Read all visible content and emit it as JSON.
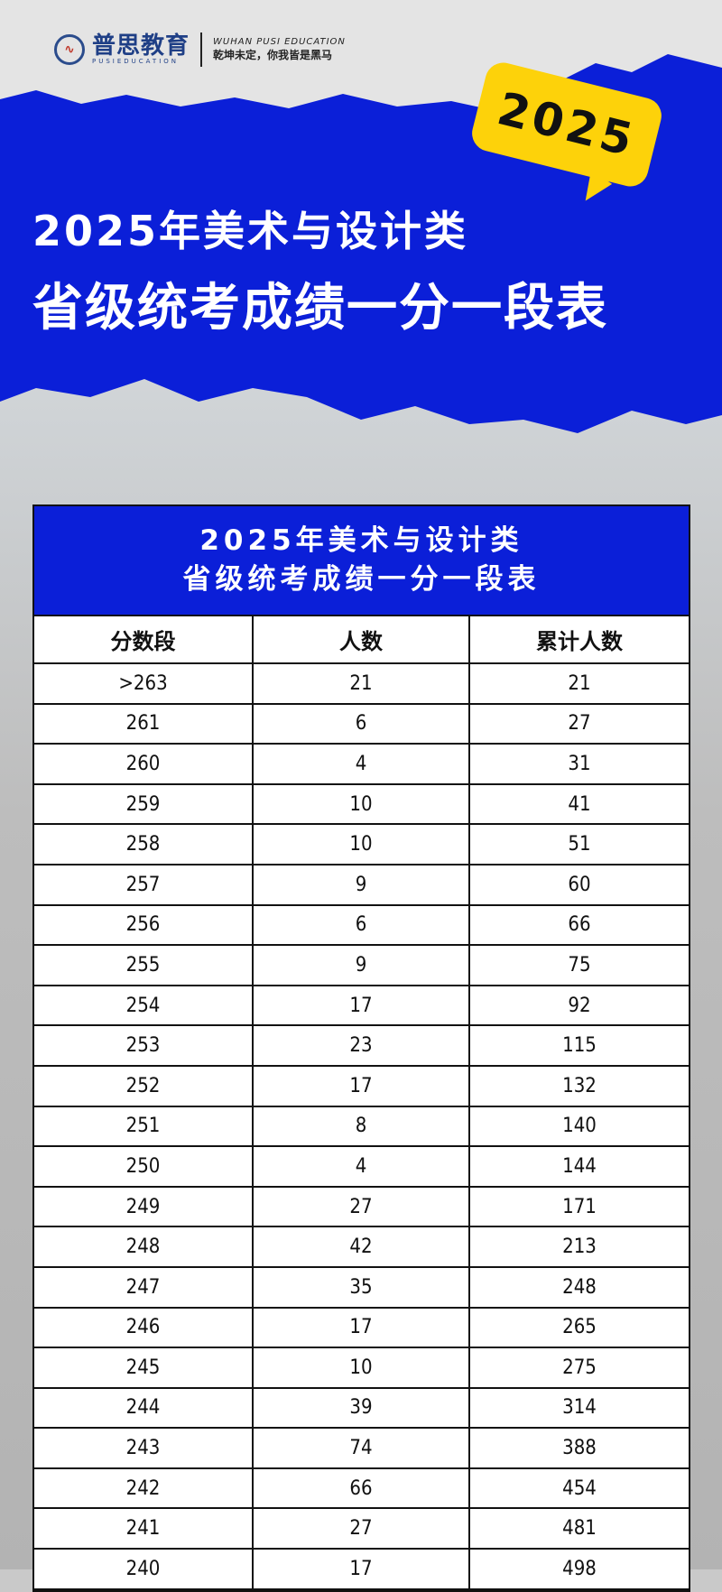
{
  "brand": {
    "name": "普思教育",
    "sub": "PUSIEDUCATION",
    "en": "WUHAN PUSI EDUCATION",
    "slogan": "乾坤未定，你我皆是黑马"
  },
  "badge": "2025",
  "title_line1": "2025年美术与设计类",
  "title_line2": "省级统考成绩一分一段表",
  "colors": {
    "blue": "#0b1fd8",
    "yellow": "#fdd20a"
  },
  "table": {
    "title_line1": "2025年美术与设计类",
    "title_line2": "省级统考成绩一分一段表",
    "headers": [
      "分数段",
      "人数",
      "累计人数"
    ],
    "rows": [
      [
        ">263",
        "21",
        "21"
      ],
      [
        "261",
        "6",
        "27"
      ],
      [
        "260",
        "4",
        "31"
      ],
      [
        "259",
        "10",
        "41"
      ],
      [
        "258",
        "10",
        "51"
      ],
      [
        "257",
        "9",
        "60"
      ],
      [
        "256",
        "6",
        "66"
      ],
      [
        "255",
        "9",
        "75"
      ],
      [
        "254",
        "17",
        "92"
      ],
      [
        "253",
        "23",
        "115"
      ],
      [
        "252",
        "17",
        "132"
      ],
      [
        "251",
        "8",
        "140"
      ],
      [
        "250",
        "4",
        "144"
      ],
      [
        "249",
        "27",
        "171"
      ],
      [
        "248",
        "42",
        "213"
      ],
      [
        "247",
        "35",
        "248"
      ],
      [
        "246",
        "17",
        "265"
      ],
      [
        "245",
        "10",
        "275"
      ],
      [
        "244",
        "39",
        "314"
      ],
      [
        "243",
        "74",
        "388"
      ],
      [
        "242",
        "66",
        "454"
      ],
      [
        "241",
        "27",
        "481"
      ],
      [
        "240",
        "17",
        "498"
      ]
    ]
  }
}
